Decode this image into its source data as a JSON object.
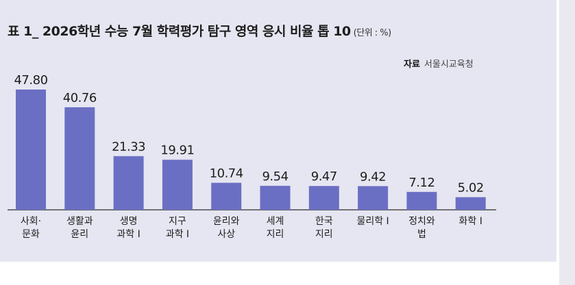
{
  "colors": {
    "bar": "#6b6fc4",
    "panel": "#e6e6f2",
    "axis": "#2b2b2b",
    "text": "#1d1d1d"
  },
  "header": {
    "title": "표 1_ 2026학년 수능 7월 학력평가 탐구 영역 응시 비율 톱 10",
    "unit": "(단위 : %)"
  },
  "source": {
    "label": "자료",
    "name": "서울시교육청"
  },
  "chart_data": {
    "type": "bar",
    "title": "표 1_ 2026학년 수능 7월 학력평가 탐구 영역 응시 비율 톱 10",
    "unit": "%",
    "categories": [
      [
        "사회·",
        "문화"
      ],
      [
        "생활과",
        "윤리"
      ],
      [
        "생명",
        "과학 Ⅰ"
      ],
      [
        "지구",
        "과학 Ⅰ"
      ],
      [
        "윤리와",
        "사상"
      ],
      [
        "세계",
        "지리"
      ],
      [
        "한국",
        "지리"
      ],
      [
        "물리학 Ⅰ"
      ],
      [
        "정치와",
        "법"
      ],
      [
        "화학 Ⅰ"
      ]
    ],
    "values": [
      47.8,
      40.76,
      21.33,
      19.91,
      10.74,
      9.54,
      9.47,
      9.42,
      7.12,
      5.02
    ],
    "value_labels": [
      "47.80",
      "40.76",
      "21.33",
      "19.91",
      "10.74",
      "9.54",
      "9.47",
      "9.42",
      "7.12",
      "5.02"
    ],
    "ylim": [
      0,
      50
    ],
    "grid": false,
    "legend": "none"
  }
}
